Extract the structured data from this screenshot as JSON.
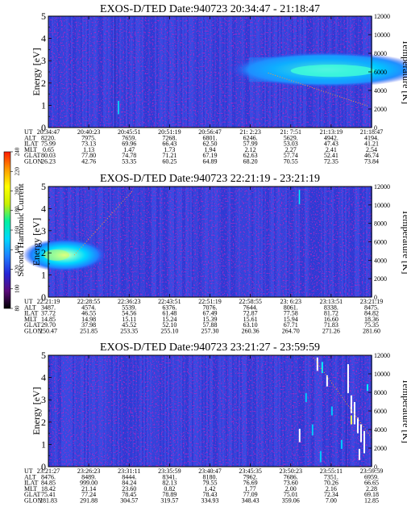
{
  "colorbar": {
    "label": "Second Harmonic Current",
    "ticks": [
      "80",
      "100",
      "120",
      "140",
      "160",
      "180",
      "200",
      "220",
      "240"
    ],
    "stops": [
      "#000000",
      "#5a0a7a",
      "#2525d8",
      "#1f7fff",
      "#00d8ff",
      "#00f0a0",
      "#c8f000",
      "#ffff00",
      "#ff9a00",
      "#ff1a00"
    ]
  },
  "panels": [
    {
      "title": "EXOS-D/TED   Date:940723  20:34:47 - 21:18:47",
      "ylabel_left": "Energy [eV]",
      "ylabel_right": "Temperature [K]",
      "eticks": [
        "0",
        "1",
        "2",
        "3",
        "4",
        "5"
      ],
      "tticks": [
        "0",
        "2000",
        "4000",
        "6000",
        "8000",
        "10000",
        "12000"
      ],
      "eph_labels": [
        "UT",
        "ALT",
        "ILAT",
        "MLT",
        "GLAT",
        "GLON"
      ],
      "eph": [
        [
          "20:34:47",
          "20:40:23",
          "20:45:51",
          "20:51:19",
          "20:56:47",
          "21: 2:23",
          "21: 7:51",
          "21:13:19",
          "21:18:47"
        ],
        [
          "8220.",
          "7975.",
          "7659.",
          "7268.",
          "6801.",
          "6246.",
          "5629.",
          "4942.",
          "4194."
        ],
        [
          "75.99",
          "73.13",
          "69.96",
          "66.43",
          "62.50",
          "57.99",
          "53.03",
          "47.43",
          "41.21"
        ],
        [
          "0.65",
          "1.13",
          "1.47",
          "1.73",
          "1.94",
          "2.12",
          "2.27",
          "2.41",
          "2.54"
        ],
        [
          "80.03",
          "77.80",
          "74.78",
          "71.21",
          "67.19",
          "62.63",
          "57.74",
          "52.41",
          "46.74"
        ],
        [
          "26.23",
          "42.76",
          "53.35",
          "60.25",
          "64.89",
          "68.20",
          "70.55",
          "72.35",
          "73.84"
        ]
      ]
    },
    {
      "title": "EXOS-D/TED   Date:940723  22:21:19 - 23:21:19",
      "ylabel_left": "Energy [eV]",
      "ylabel_right": "Temperature [K]",
      "eticks": [
        "0",
        "1",
        "2",
        "3",
        "4",
        "5"
      ],
      "tticks": [
        "0",
        "2000",
        "4000",
        "6000",
        "8000",
        "10000",
        "12000"
      ],
      "eph_labels": [
        "UT",
        "ALT",
        "ILAT",
        "MLT",
        "GLAT",
        "GLON"
      ],
      "eph": [
        [
          "22:21:19",
          "22:28:55",
          "22:36:23",
          "22:43:51",
          "22:51:19",
          "22:58:55",
          "23: 6:23",
          "23:13:51",
          "23:21:19"
        ],
        [
          "3487.",
          "4574.",
          "5539.",
          "6376.",
          "7076.",
          "7644.",
          "8061.",
          "8338.",
          "8475."
        ],
        [
          "37.72",
          "46.55",
          "54.56",
          "61.48",
          "67.49",
          "72.87",
          "77.58",
          "81.72",
          "84.82"
        ],
        [
          "14.85",
          "14.98",
          "15.11",
          "15.24",
          "15.39",
          "15.61",
          "15.94",
          "16.60",
          "18.36"
        ],
        [
          "29.70",
          "37.98",
          "45.52",
          "52.10",
          "57.88",
          "63.10",
          "67.71",
          "71.83",
          "75.35"
        ],
        [
          "250.47",
          "251.85",
          "253.35",
          "255.10",
          "257.30",
          "260.36",
          "264.70",
          "271.26",
          "281.60"
        ]
      ]
    },
    {
      "title": "EXOS-D/TED   Date:940723  23:21:27 - 23:59:59",
      "ylabel_left": "Energy [eV]",
      "ylabel_right": "Temperature [K]",
      "eticks": [
        "0",
        "1",
        "2",
        "3",
        "4",
        "5"
      ],
      "tticks": [
        "0",
        "2000",
        "4000",
        "6000",
        "8000",
        "10000",
        "12000"
      ],
      "eph_labels": [
        "UT",
        "ALT",
        "ILAT",
        "MLT",
        "GLAT",
        "GLON"
      ],
      "eph": [
        [
          "23:21:27",
          "23:26:23",
          "23:31:11",
          "23:35:59",
          "23:40:47",
          "23:45:35",
          "23:50:23",
          "23:55:11",
          "23:59:59"
        ],
        [
          "8476.",
          "8489.",
          "8444.",
          "8341.",
          "8180.",
          "7962.",
          "7686.",
          "7351.",
          "6959."
        ],
        [
          "84.85",
          "999.00",
          "84.24",
          "82.13",
          "79.55",
          "76.69",
          "73.60",
          "70.26",
          "66.65"
        ],
        [
          "18.42",
          "21.14",
          "23.60",
          "0.82",
          "1.42",
          "1.77",
          "2.00",
          "2.16",
          "2.28"
        ],
        [
          "75.41",
          "77.24",
          "78.45",
          "78.89",
          "78.43",
          "77.09",
          "75.01",
          "72.34",
          "69.18"
        ],
        [
          "281.83",
          "291.88",
          "304.57",
          "319.57",
          "334.93",
          "348.43",
          "359.06",
          "7.00",
          "12.85"
        ]
      ]
    }
  ],
  "chart_data": {
    "type": "heatmap",
    "x_axis": "UT",
    "y_left": {
      "label": "Energy [eV]",
      "range": [
        0,
        5
      ]
    },
    "y_right": {
      "label": "Temperature [K]",
      "range": [
        0,
        12000
      ]
    },
    "color_scale": {
      "label": "Second Harmonic Current",
      "range": [
        80,
        240
      ]
    },
    "panels": [
      {
        "date": "940723",
        "start": "20:34:47",
        "end": "21:18:47",
        "features": [
          {
            "type": "high_band",
            "ut_start": "21:01",
            "ut_end": "21:18:47",
            "energy_low": 2.0,
            "energy_high": 3.2,
            "peak_energy": 2.6
          }
        ]
      },
      {
        "date": "940723",
        "start": "22:21:19",
        "end": "23:21:19",
        "features": [
          {
            "type": "high_band",
            "ut_start": "22:21:19",
            "ut_end": "22:32",
            "energy_low": 1.3,
            "energy_high": 2.5,
            "peak_energy": 1.9
          }
        ]
      },
      {
        "date": "940723",
        "start": "23:21:27",
        "end": "23:59:59",
        "features": [
          {
            "type": "scattered_spikes",
            "ut_start": "23:48",
            "ut_end": "23:59:59"
          }
        ]
      }
    ]
  }
}
